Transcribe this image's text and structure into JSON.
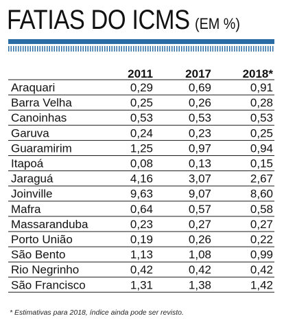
{
  "title": {
    "main": "FATIAS DO ICMS",
    "sub": "(EM %)"
  },
  "colors": {
    "accent": "#2a6da5",
    "rule": "#1a1a1a"
  },
  "footnote": "* Estimativas para 2018, índice ainda pode ser revisto.",
  "chart_data": {
    "type": "table",
    "title": "FATIAS DO ICMS (EM %)",
    "columns": [
      "2011",
      "2017",
      "2018*"
    ],
    "rows": [
      {
        "city": "Araquari",
        "values": [
          "0,29",
          "0,69",
          "0,91"
        ]
      },
      {
        "city": "Barra Velha",
        "values": [
          "0,25",
          "0,26",
          "0,28"
        ]
      },
      {
        "city": "Canoinhas",
        "values": [
          "0,53",
          "0,53",
          "0,53"
        ]
      },
      {
        "city": "Garuva",
        "values": [
          "0,24",
          "0,23",
          "0,25"
        ]
      },
      {
        "city": "Guaramirim",
        "values": [
          "1,25",
          "0,97",
          "0,94"
        ]
      },
      {
        "city": "Itapoá",
        "values": [
          "0,08",
          "0,13",
          "0,15"
        ]
      },
      {
        "city": "Jaraguá",
        "values": [
          "4,16",
          "3,07",
          "2,67"
        ]
      },
      {
        "city": "Joinville",
        "values": [
          "9,63",
          "9,07",
          "8,60"
        ]
      },
      {
        "city": "Mafra",
        "values": [
          "0,64",
          "0,57",
          "0,58"
        ]
      },
      {
        "city": "Massaranduba",
        "values": [
          "0,23",
          "0,27",
          "0,27"
        ]
      },
      {
        "city": "Porto União",
        "values": [
          "0,19",
          "0,26",
          "0,22"
        ]
      },
      {
        "city": "São Bento",
        "values": [
          "1,13",
          "1,08",
          "0,99"
        ]
      },
      {
        "city": "Rio Negrinho",
        "values": [
          "0,42",
          "0,42",
          "0,42"
        ]
      },
      {
        "city": "São Francisco",
        "values": [
          "1,31",
          "1,38",
          "1,42"
        ]
      }
    ]
  }
}
